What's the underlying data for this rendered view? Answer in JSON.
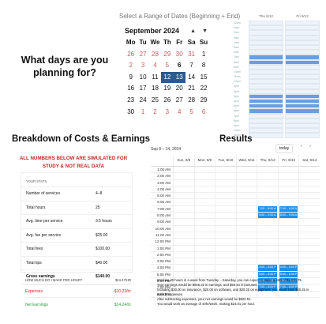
{
  "question": "What days are you planning for?",
  "picker": {
    "title": "Select a Range of Dates (Beginning + End)",
    "month": "September 2024",
    "nav_prev": "▲",
    "nav_next": "▼",
    "weekdays": [
      "Mo",
      "Tu",
      "We",
      "Th",
      "Fr",
      "Sa",
      "Su"
    ],
    "weeks": [
      [
        {
          "d": "26",
          "s": "out"
        },
        {
          "d": "27",
          "s": "out"
        },
        {
          "d": "28",
          "s": "out"
        },
        {
          "d": "29",
          "s": "out"
        },
        {
          "d": "30",
          "s": "out"
        },
        {
          "d": "31",
          "s": "out"
        },
        {
          "d": "1",
          "s": ""
        }
      ],
      [
        {
          "d": "2",
          "s": "out"
        },
        {
          "d": "3",
          "s": "out"
        },
        {
          "d": "4",
          "s": "out"
        },
        {
          "d": "5",
          "s": "out"
        },
        {
          "d": "6",
          "s": "today"
        },
        {
          "d": "7",
          "s": ""
        },
        {
          "d": "8",
          "s": ""
        }
      ],
      [
        {
          "d": "9",
          "s": ""
        },
        {
          "d": "10",
          "s": ""
        },
        {
          "d": "11",
          "s": ""
        },
        {
          "d": "12",
          "s": "sel"
        },
        {
          "d": "13",
          "s": "sel"
        },
        {
          "d": "14",
          "s": ""
        },
        {
          "d": "15",
          "s": ""
        }
      ],
      [
        {
          "d": "16",
          "s": ""
        },
        {
          "d": "17",
          "s": ""
        },
        {
          "d": "18",
          "s": ""
        },
        {
          "d": "19",
          "s": ""
        },
        {
          "d": "20",
          "s": ""
        },
        {
          "d": "21",
          "s": ""
        },
        {
          "d": "22",
          "s": ""
        }
      ],
      [
        {
          "d": "23",
          "s": ""
        },
        {
          "d": "24",
          "s": ""
        },
        {
          "d": "25",
          "s": ""
        },
        {
          "d": "26",
          "s": ""
        },
        {
          "d": "27",
          "s": ""
        },
        {
          "d": "28",
          "s": ""
        },
        {
          "d": "29",
          "s": ""
        }
      ],
      [
        {
          "d": "30",
          "s": ""
        },
        {
          "d": "1",
          "s": "out"
        },
        {
          "d": "2",
          "s": "out"
        },
        {
          "d": "3",
          "s": "out"
        },
        {
          "d": "4",
          "s": "out"
        },
        {
          "d": "5",
          "s": "out"
        },
        {
          "d": "6",
          "s": "out"
        }
      ]
    ]
  },
  "mini": {
    "days": [
      "Thu 9/12",
      "Fri 9/13"
    ],
    "times": [
      "12am",
      "1am",
      "2am",
      "3am",
      "4am",
      "5am",
      "6am",
      "7am",
      "8am",
      "9am",
      "10am",
      "11am",
      "12pm",
      "1pm",
      "2pm",
      "3pm",
      "4pm",
      "5pm",
      "6pm",
      "7pm",
      "8pm",
      "9pm",
      "10pm",
      "11pm"
    ],
    "on_rows": [
      7,
      8,
      15,
      16,
      17,
      18
    ]
  },
  "breakdown": {
    "title": "Breakdown of Costs & Earnings",
    "warning": "ALL NUMBERS BELOW ARE SIMULATED FOR STUDY & NOT REAL DATA",
    "card_header": "YOUR STATS",
    "rows": [
      {
        "label": "Number of services",
        "value": "4–8",
        "bold": false
      },
      {
        "label": "Total hours",
        "value": "25",
        "bold": false
      },
      {
        "label": "Avg. time per service",
        "value": "3.5 hours",
        "bold": false
      },
      {
        "label": "Avg. fee per service",
        "value": "$25.00",
        "bold": false
      },
      {
        "label": "Total fees",
        "value": "$100.00",
        "bold": false
      },
      {
        "label": "Total tips",
        "value": "$40.00",
        "bold": false
      },
      {
        "label": "Gross earnings",
        "value": "$140.00",
        "bold": true
      }
    ],
    "rate_label": "HOW MUCH DO I MAKE PER HOUR?",
    "rate_value": "$24.47/HR",
    "expenses_label": "Expenses",
    "expenses_value": "-$10.23/hr",
    "net_label": "Net Earnings",
    "net_value": "$14.24/hr"
  },
  "results": {
    "title": "Results",
    "range": "Sep 8 – 14, 2024",
    "today_label": "today",
    "prev": "‹",
    "next": "›",
    "days": [
      "Sun, 9/8",
      "Mon, 9/9",
      "Tue, 9/10",
      "Wed, 9/11",
      "Thu, 9/12",
      "Fri, 9/13",
      "Sat, 9/14"
    ],
    "times": [
      "1:00 AM",
      "2:00 AM",
      "3:00 AM",
      "4:00 AM",
      "5:00 AM",
      "6:00 AM",
      "7:00 AM",
      "8:00 AM",
      "9:00 AM",
      "10:00 AM",
      "11:00 AM",
      "12:00 PM",
      "1:00 PM",
      "2:00 PM",
      "3:00 PM",
      "4:00 PM",
      "5:00 PM",
      "6:00 PM",
      "7:00 PM",
      "8:00 PM"
    ],
    "events": [
      {
        "row": 6,
        "col": 4,
        "label": "7:00 – 8:00 A"
      },
      {
        "row": 6,
        "col": 5,
        "label": "7:00 – 8:00 A"
      },
      {
        "row": 7,
        "col": 4,
        "label": "8:00 – 9:00 A"
      },
      {
        "row": 7,
        "col": 5,
        "label": "8:00 – 9:00 A"
      },
      {
        "row": 15,
        "col": 4,
        "label": "4:00 – 5:00 P"
      },
      {
        "row": 15,
        "col": 5,
        "label": "4:00 – 5:00 P"
      },
      {
        "row": 16,
        "col": 4,
        "label": "5:00 – 6:00 P"
      },
      {
        "row": 16,
        "col": 5,
        "label": "5:00 – 6:00 P"
      },
      {
        "row": 17,
        "col": 4,
        "label": "6:00 – 7:00 P"
      },
      {
        "row": 17,
        "col": 5,
        "label": "6:00 – 7:00 P"
      },
      {
        "row": 18,
        "col": 4,
        "label": "7:00 – 8:00 P"
      },
      {
        "row": 18,
        "col": 5,
        "label": "7:00 – 8:00 P"
      }
    ],
    "summary": [
      "Working 40 hours in a week from Tuesday – Saturday, you can expect to make a total of $1,000.75.",
      "Your earnings would be $945.32 in earnings, and $55.44 in bonuses.",
      "Including $30.00 on insurance, $20.00 on software, and $30.25 on equipment, you would total $80.25 in weekly expenses.",
      "After subtracting expenses, your net earnings would be $920.51.",
      "You would work an average of 40hr/week, making $23.01 per hour."
    ]
  }
}
